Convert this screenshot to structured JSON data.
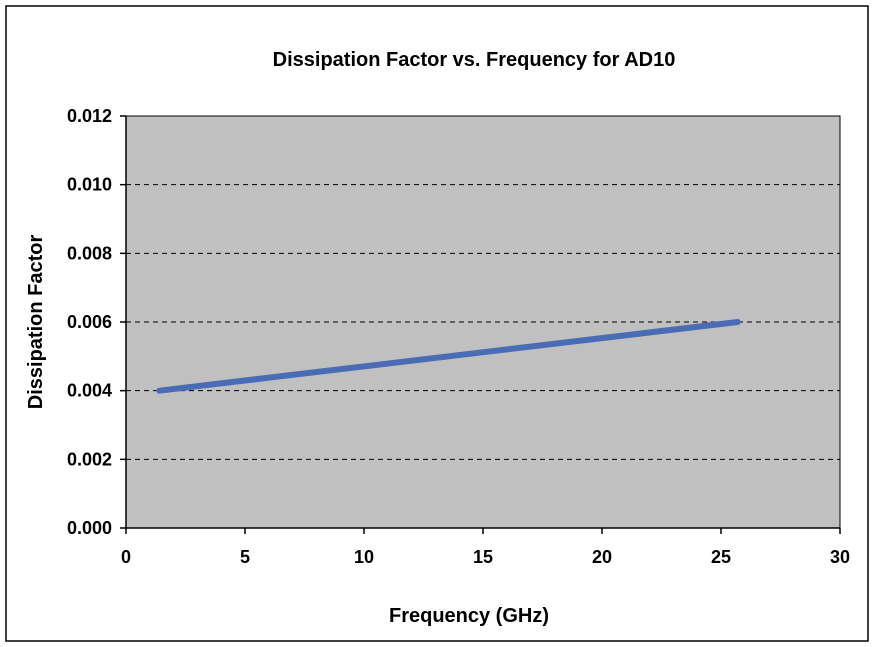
{
  "chart_data": {
    "type": "line",
    "title": "Dissipation Factor vs. Frequency  for AD10",
    "xlabel": "Frequency (GHz)",
    "ylabel": "Dissipation Factor",
    "xlim": [
      0,
      30
    ],
    "ylim": [
      0,
      0.012
    ],
    "x_ticks": [
      "0",
      "5",
      "10",
      "15",
      "20",
      "25",
      "30"
    ],
    "y_ticks": [
      "0.000",
      "0.002",
      "0.004",
      "0.006",
      "0.008",
      "0.010",
      "0.012"
    ],
    "grid": "horizontal dashed",
    "legend": "none",
    "series": [
      {
        "x": [
          1.4,
          25.7
        ],
        "values": [
          0.004,
          0.006
        ]
      }
    ],
    "colors": {
      "plot_background": "#c0c0c0",
      "series_line": "#4a6cb5",
      "gridline": "#000000",
      "frame": "#000000"
    }
  }
}
